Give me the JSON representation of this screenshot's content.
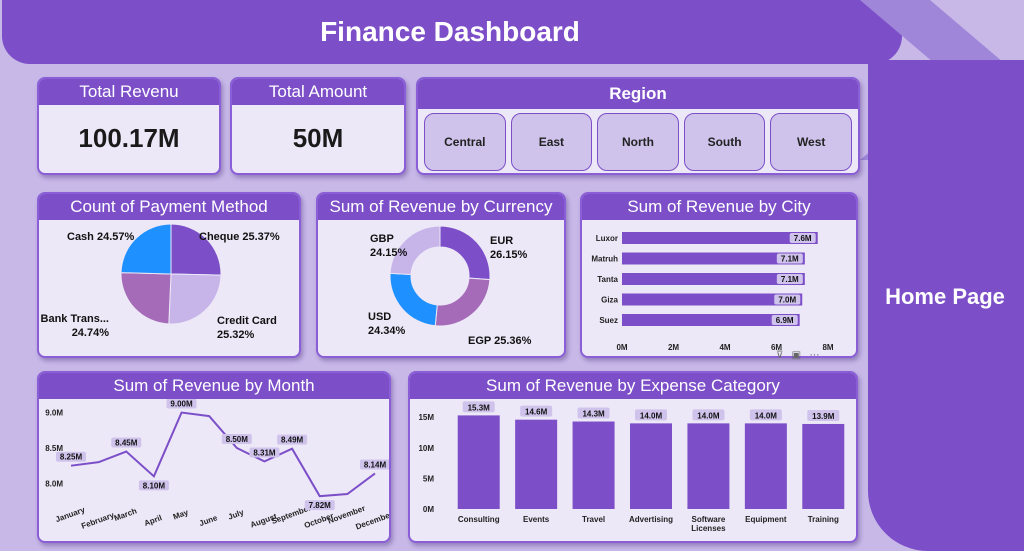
{
  "header": {
    "title": "Finance Dashboard"
  },
  "nav": {
    "home_label": "Home Page"
  },
  "kpis": [
    {
      "title": "Total Revenu",
      "value": "100.17M"
    },
    {
      "title": "Total Amount",
      "value": "50M"
    }
  ],
  "region": {
    "title": "Region",
    "options": [
      "Central",
      "East",
      "North",
      "South",
      "West"
    ]
  },
  "colors": {
    "accent": "#7c4fc9",
    "panel": "#ece8f7",
    "bg": "#c7b8e8"
  },
  "chart_data": [
    {
      "type": "pie",
      "title": "Count of Payment Method",
      "labels": [
        "Cheque",
        "Credit Card",
        "Bank Trans...",
        "Cash"
      ],
      "values": [
        25.37,
        25.32,
        24.74,
        24.57
      ],
      "value_labels": [
        "Cheque 25.37%",
        "Credit Card 25.32%",
        "Bank Trans... 24.74%",
        "Cash 24.57%"
      ],
      "colors": [
        "#7c4fc9",
        "#c7b5ea",
        "#a56bb8",
        "#1e90ff"
      ]
    },
    {
      "type": "pie",
      "title": "Sum of Revenue by Currency",
      "labels": [
        "EUR",
        "EGP",
        "USD",
        "GBP"
      ],
      "values": [
        26.15,
        25.36,
        24.34,
        24.15
      ],
      "value_labels": [
        "EUR 26.15%",
        "EGP 25.36%",
        "USD 24.34%",
        "GBP 24.15%"
      ],
      "colors": [
        "#7c4fc9",
        "#a56bb8",
        "#1e90ff",
        "#c7b5ea"
      ]
    },
    {
      "type": "bar",
      "orientation": "horizontal",
      "title": "Sum of Revenue by City",
      "categories": [
        "Luxor",
        "Matruh",
        "Tanta",
        "Giza",
        "Suez"
      ],
      "values": [
        7.6,
        7.1,
        7.1,
        7.0,
        6.9
      ],
      "value_labels": [
        "7.6M",
        "7.1M",
        "7.1M",
        "7.0M",
        "6.9M"
      ],
      "xticks": [
        "0M",
        "2M",
        "4M",
        "6M",
        "8M"
      ],
      "xlim": [
        0,
        8
      ]
    },
    {
      "type": "line",
      "title": "Sum of Revenue by Month",
      "categories": [
        "January",
        "February",
        "March",
        "April",
        "May",
        "June",
        "July",
        "August",
        "September",
        "October",
        "November",
        "December"
      ],
      "values": [
        8.25,
        8.3,
        8.45,
        8.1,
        9.0,
        8.95,
        8.5,
        8.31,
        8.49,
        7.82,
        7.85,
        8.14
      ],
      "value_labels": [
        "8.25M",
        "",
        "8.45M",
        "8.10M",
        "9.00M",
        "",
        "8.50M",
        "8.31M",
        "8.49M",
        "7.82M",
        "",
        "8.14M"
      ],
      "yticks": [
        "8.0M",
        "8.5M",
        "9.0M"
      ],
      "ylim": [
        7.78,
        9.05
      ]
    },
    {
      "type": "bar",
      "title": "Sum of Revenue by Expense Category",
      "categories": [
        "Consulting",
        "Events",
        "Travel",
        "Advertising",
        "Software Licenses",
        "Equipment",
        "Training"
      ],
      "values": [
        15.3,
        14.6,
        14.3,
        14.0,
        14.0,
        14.0,
        13.9
      ],
      "value_labels": [
        "15.3M",
        "14.6M",
        "14.3M",
        "14.0M",
        "14.0M",
        "14.0M",
        "13.9M"
      ],
      "yticks": [
        "0M",
        "5M",
        "10M",
        "15M"
      ],
      "ylim": [
        0,
        17
      ]
    }
  ]
}
